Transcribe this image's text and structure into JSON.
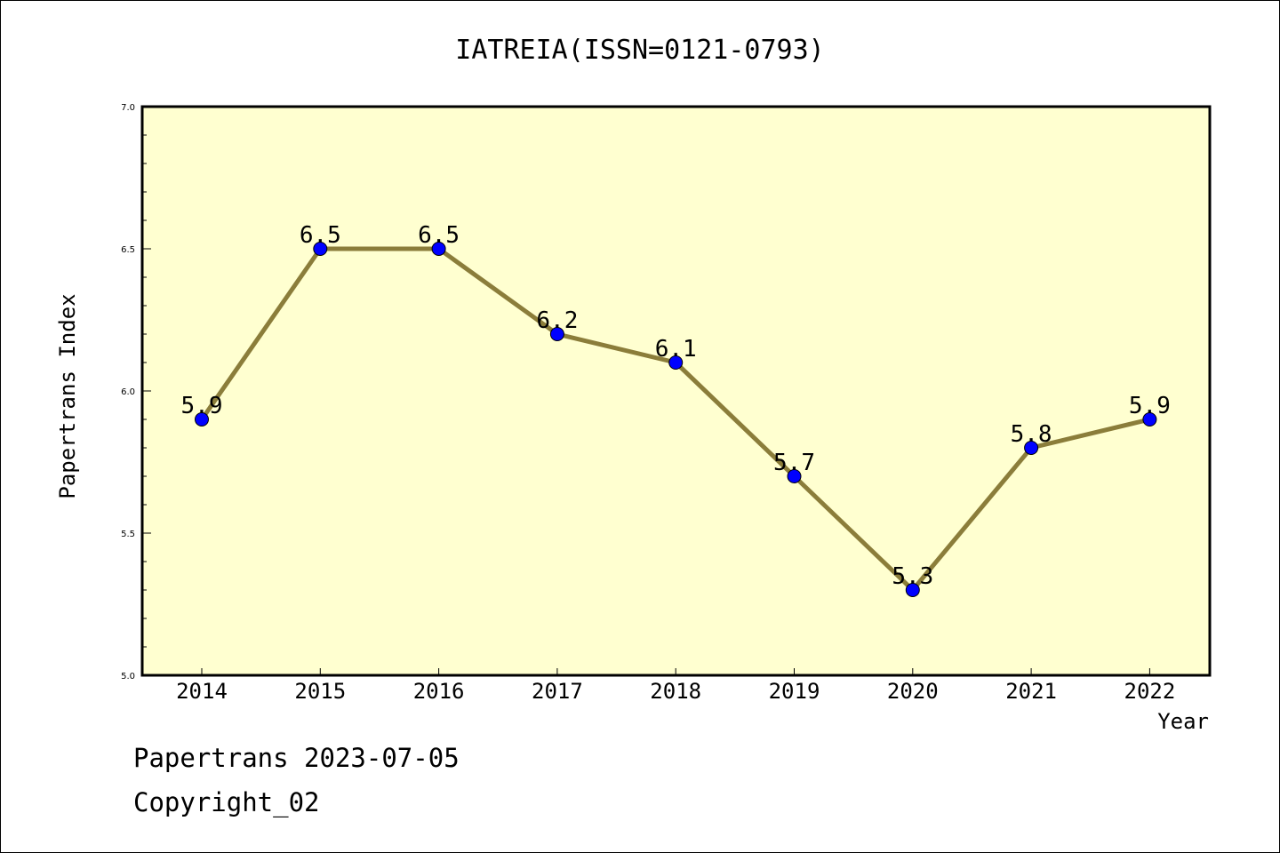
{
  "chart_data": {
    "type": "line",
    "title": "IATREIA(ISSN=0121-0793)",
    "xlabel": "Year",
    "ylabel": "Papertrans Index",
    "x": [
      "2014",
      "2015",
      "2016",
      "2017",
      "2018",
      "2019",
      "2020",
      "2021",
      "2022"
    ],
    "values": [
      5.9,
      6.5,
      6.5,
      6.2,
      6.1,
      5.7,
      5.3,
      5.8,
      5.9
    ],
    "data_labels": [
      "5.9",
      "6.5",
      "6.5",
      "6.2",
      "6.1",
      "5.7",
      "5.3",
      "5.8",
      "5.9"
    ],
    "ylim": [
      5.0,
      7.0
    ],
    "yticks": [
      "5.0",
      "5.5",
      "6.0",
      "6.5",
      "7.0"
    ],
    "grid": false,
    "colors": {
      "plot_background": "#ffffd0",
      "line": "#8b7d3a",
      "marker": "#0000ff"
    }
  },
  "footer": {
    "line1": "Papertrans 2023-07-05",
    "line2": "Copyright_02"
  }
}
